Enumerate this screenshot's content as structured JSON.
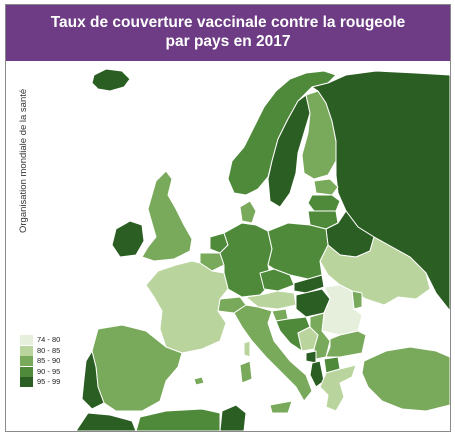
{
  "title": {
    "line1": "Taux de couverture vaccinale contre la rougeole",
    "line2": "par pays en 2017"
  },
  "source": "Organisation mondiale de la santé",
  "colors": {
    "header": "#6e3c84",
    "sea": "#ffffff",
    "border": "#ffffff",
    "c74_80": "#e6efdc",
    "c80_85": "#b9d49c",
    "c85_90": "#79a95a",
    "c90_95": "#4e8a3a",
    "c95_99": "#2b5e22"
  },
  "legend": [
    {
      "label": "74 - 80",
      "color": "#e6efdc"
    },
    {
      "label": "80 - 85",
      "color": "#b9d49c"
    },
    {
      "label": "85 - 90",
      "color": "#79a95a"
    },
    {
      "label": "90 - 95",
      "color": "#4e8a3a"
    },
    {
      "label": "95 - 99",
      "color": "#2b5e22"
    }
  ]
}
